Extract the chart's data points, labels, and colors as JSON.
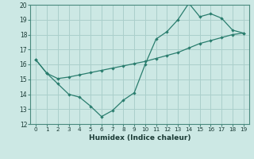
{
  "title": "",
  "xlabel": "Humidex (Indice chaleur)",
  "ylabel": "",
  "background_color": "#cce8e4",
  "grid_color": "#aacfcb",
  "line_color": "#2a7d6e",
  "x_values": [
    0,
    1,
    2,
    3,
    4,
    5,
    6,
    7,
    8,
    9,
    10,
    11,
    12,
    13,
    14,
    15,
    16,
    17,
    18,
    19
  ],
  "series1": [
    16.3,
    15.4,
    14.7,
    14.0,
    13.8,
    13.2,
    12.5,
    12.9,
    13.6,
    14.1,
    16.0,
    17.7,
    18.2,
    19.0,
    20.1,
    19.2,
    19.4,
    19.1,
    18.3,
    18.1
  ],
  "series2": [
    16.3,
    15.4,
    15.05,
    15.15,
    15.3,
    15.45,
    15.6,
    15.75,
    15.9,
    16.05,
    16.2,
    16.4,
    16.6,
    16.8,
    17.1,
    17.4,
    17.6,
    17.8,
    18.0,
    18.1
  ],
  "ylim": [
    12,
    20
  ],
  "yticks": [
    12,
    13,
    14,
    15,
    16,
    17,
    18,
    19,
    20
  ],
  "xlim_min": -0.5,
  "xlim_max": 19.5
}
